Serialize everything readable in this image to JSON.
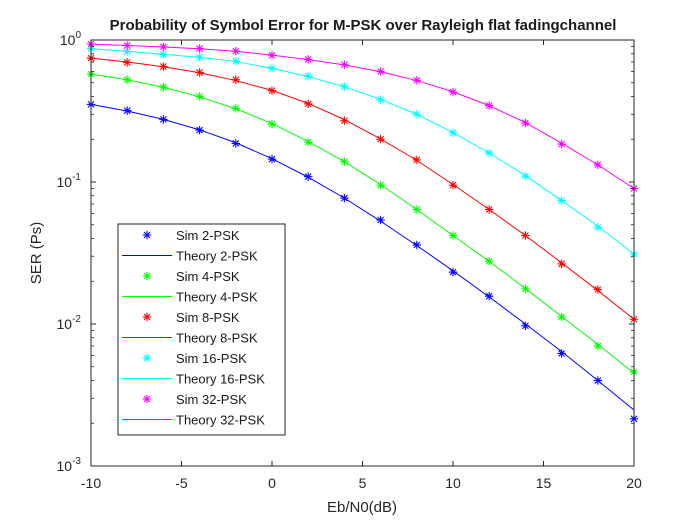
{
  "chart_data": {
    "type": "line",
    "title": "Probability of Symbol Error for M-PSK over Rayleigh flat fadingchannel",
    "xlabel": "Eb/N0(dB)",
    "ylabel": "SER (Ps)",
    "xlim": [
      -10,
      20
    ],
    "ylim": [
      0.001,
      1
    ],
    "yscale": "log",
    "grid": false,
    "legend_position": "lower-left",
    "x_ticks": [
      -10,
      -5,
      0,
      5,
      10,
      15,
      20
    ],
    "x_tick_labels": [
      "-10",
      "-5",
      "0",
      "5",
      "10",
      "15",
      "20"
    ],
    "y_ticks": [
      0.001,
      0.01,
      0.1,
      1
    ],
    "y_tick_labels": [
      {
        "base": "10",
        "exp": "-3"
      },
      {
        "base": "10",
        "exp": "-2"
      },
      {
        "base": "10",
        "exp": "-1"
      },
      {
        "base": "10",
        "exp": "0"
      }
    ],
    "x": [
      -10,
      -8,
      -6,
      -4,
      -2,
      0,
      2,
      4,
      6,
      8,
      10,
      12,
      14,
      16,
      18,
      20
    ],
    "series": [
      {
        "name": "Sim 2-PSK",
        "theory_name": "Theory 2-PSK",
        "color": "#0000ff",
        "sim": [
          0.352,
          0.318,
          0.276,
          0.232,
          0.187,
          0.145,
          0.109,
          0.077,
          0.054,
          0.036,
          0.0232,
          0.0157,
          0.0097,
          0.0062,
          0.004,
          0.00215
        ],
        "theory": [
          0.352,
          0.316,
          0.276,
          0.233,
          0.189,
          0.146,
          0.108,
          0.077,
          0.053,
          0.0357,
          0.0237,
          0.0155,
          0.01,
          0.0064,
          0.004,
          0.00248
        ]
      },
      {
        "name": "Sim 4-PSK",
        "theory_name": "Theory 4-PSK",
        "color": "#00ff00",
        "sim": [
          0.575,
          0.525,
          0.465,
          0.4,
          0.33,
          0.256,
          0.191,
          0.139,
          0.095,
          0.064,
          0.042,
          0.0277,
          0.0177,
          0.0112,
          0.007,
          0.0046
        ],
        "theory": [
          0.575,
          0.525,
          0.465,
          0.398,
          0.328,
          0.258,
          0.193,
          0.139,
          0.096,
          0.064,
          0.042,
          0.0276,
          0.0178,
          0.0113,
          0.0072,
          0.0045
        ]
      },
      {
        "name": "Sim 8-PSK",
        "theory_name": "Theory 8-PSK",
        "color": "#ff0000",
        "sim": [
          0.745,
          0.695,
          0.65,
          0.59,
          0.525,
          0.44,
          0.355,
          0.27,
          0.2,
          0.143,
          0.095,
          0.064,
          0.042,
          0.0265,
          0.0175,
          0.0108
        ],
        "theory": [
          0.745,
          0.7,
          0.648,
          0.588,
          0.518,
          0.442,
          0.358,
          0.275,
          0.201,
          0.142,
          0.096,
          0.064,
          0.042,
          0.027,
          0.0172,
          0.0108
        ]
      },
      {
        "name": "Sim 16-PSK",
        "theory_name": "Theory 16-PSK",
        "color": "#00ffff",
        "sim": [
          0.87,
          0.83,
          0.79,
          0.755,
          0.71,
          0.63,
          0.555,
          0.47,
          0.38,
          0.3,
          0.222,
          0.16,
          0.11,
          0.074,
          0.048,
          0.031
        ],
        "theory": [
          0.87,
          0.832,
          0.793,
          0.755,
          0.705,
          0.632,
          0.553,
          0.468,
          0.382,
          0.3,
          0.223,
          0.16,
          0.111,
          0.074,
          0.049,
          0.031
        ]
      },
      {
        "name": "Sim 32-PSK",
        "theory_name": "Theory 32-PSK",
        "color": "#ff00ff",
        "sim": [
          0.935,
          0.915,
          0.895,
          0.87,
          0.835,
          0.78,
          0.73,
          0.67,
          0.6,
          0.52,
          0.43,
          0.345,
          0.26,
          0.185,
          0.132,
          0.09
        ],
        "theory": [
          0.935,
          0.915,
          0.893,
          0.868,
          0.833,
          0.783,
          0.728,
          0.668,
          0.598,
          0.518,
          0.432,
          0.345,
          0.262,
          0.188,
          0.132,
          0.09
        ]
      }
    ]
  }
}
